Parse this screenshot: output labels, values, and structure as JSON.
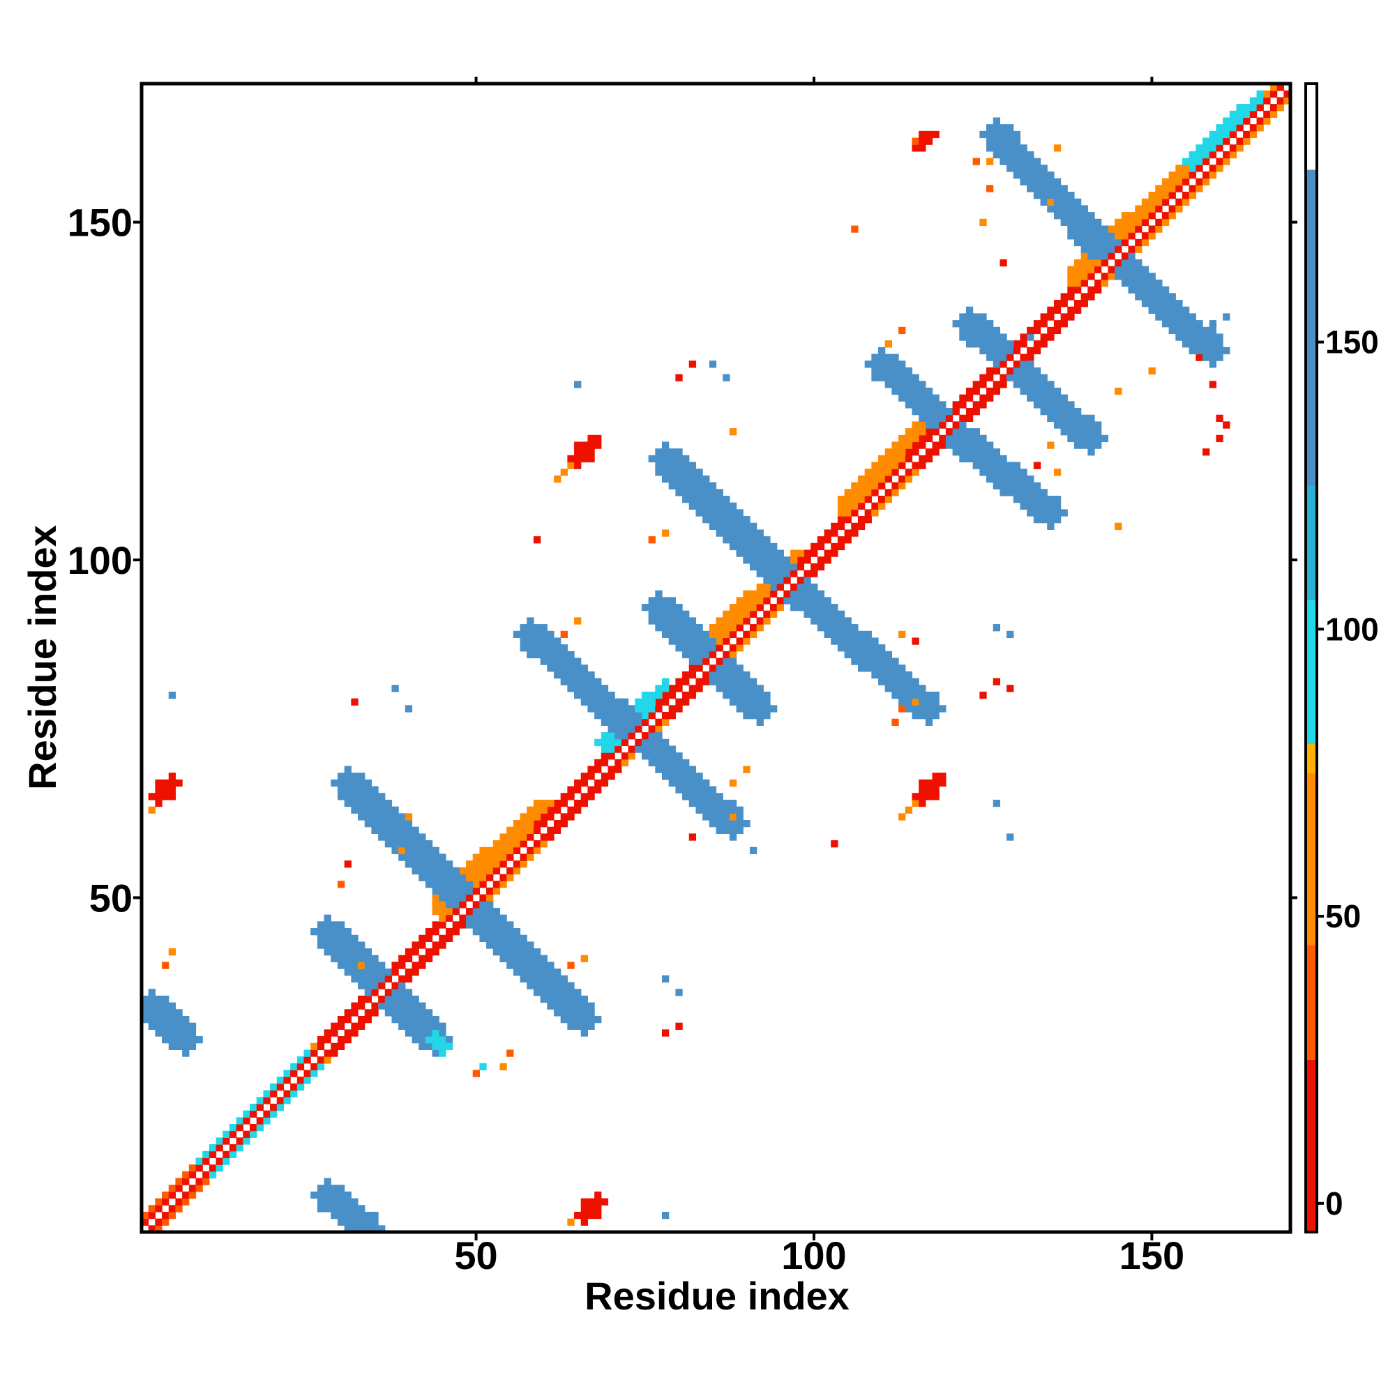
{
  "chart_data": {
    "type": "heatmap",
    "title": "",
    "xlabel": "Residue index",
    "ylabel": "Residue index",
    "xlim": [
      1,
      170
    ],
    "ylim": [
      1,
      170
    ],
    "x_ticks": [
      50,
      100,
      150
    ],
    "y_ticks": [
      50,
      100,
      150
    ],
    "colorbar": {
      "ticks": [
        0,
        50,
        100,
        150
      ],
      "range": [
        -5,
        195
      ],
      "bands": [
        {
          "from": -5,
          "to": 25,
          "color": "#ee1100"
        },
        {
          "from": 25,
          "to": 45,
          "color": "#ff5a00"
        },
        {
          "from": 45,
          "to": 75,
          "color": "#ff8c00"
        },
        {
          "from": 75,
          "to": 80,
          "color": "#ffb000"
        },
        {
          "from": 80,
          "to": 105,
          "color": "#22d8e8"
        },
        {
          "from": 105,
          "to": 125,
          "color": "#2ab0d8"
        },
        {
          "from": 125,
          "to": 180,
          "color": "#4a90c8"
        },
        {
          "from": 180,
          "to": 195,
          "color": "#ffffff"
        }
      ]
    },
    "diagonal": {
      "from": 1,
      "to": 170,
      "value": 5,
      "border_value": 60
    },
    "segments": [
      {
        "x1": 2,
        "y1": 2,
        "x2": 15,
        "y2": 15,
        "width": 1.5,
        "value": 40
      },
      {
        "x1": 11,
        "y1": 11,
        "x2": 19,
        "y2": 19,
        "width": 2,
        "value": 95
      },
      {
        "x1": 19,
        "y1": 19,
        "x2": 25,
        "y2": 25,
        "width": 2,
        "value": 95
      },
      {
        "x1": 29,
        "y1": 29,
        "x2": 37,
        "y2": 37,
        "width": 2,
        "value": 10
      },
      {
        "x1": 38,
        "y1": 38,
        "x2": 46,
        "y2": 46,
        "width": 2,
        "value": 10
      },
      {
        "x1": 46,
        "y1": 49,
        "x2": 60,
        "y2": 62,
        "width": 2.5,
        "value": 55
      },
      {
        "x1": 61,
        "y1": 61,
        "x2": 69,
        "y2": 69,
        "width": 2,
        "value": 10
      },
      {
        "x1": 70,
        "y1": 73,
        "x2": 78,
        "y2": 80,
        "width": 2,
        "value": 95
      },
      {
        "x1": 79,
        "y1": 79,
        "x2": 85,
        "y2": 85,
        "width": 2,
        "value": 10
      },
      {
        "x1": 85,
        "y1": 87,
        "x2": 98,
        "y2": 99,
        "width": 2.5,
        "value": 55
      },
      {
        "x1": 99,
        "y1": 99,
        "x2": 106,
        "y2": 106,
        "width": 2,
        "value": 10
      },
      {
        "x1": 106,
        "y1": 108,
        "x2": 116,
        "y2": 118,
        "width": 2.5,
        "value": 55
      },
      {
        "x1": 116,
        "y1": 116,
        "x2": 124,
        "y2": 124,
        "width": 2,
        "value": 10
      },
      {
        "x1": 126,
        "y1": 126,
        "x2": 140,
        "y2": 140,
        "width": 2,
        "value": 10
      },
      {
        "x1": 140,
        "y1": 142,
        "x2": 156,
        "y2": 157,
        "width": 2.5,
        "value": 55
      },
      {
        "x1": 157,
        "y1": 159,
        "x2": 166,
        "y2": 167,
        "width": 2,
        "value": 95
      },
      {
        "x1": 28,
        "y1": 45,
        "x2": 44,
        "y2": 29,
        "width": 2.2,
        "value": 150
      },
      {
        "x1": 44,
        "y1": 29,
        "x2": 45,
        "y2": 28,
        "width": 1,
        "value": 90
      },
      {
        "x1": 31,
        "y1": 67,
        "x2": 48,
        "y2": 50,
        "width": 2.2,
        "value": 150
      },
      {
        "x1": 48,
        "y1": 50,
        "x2": 66,
        "y2": 32,
        "width": 2.2,
        "value": 150
      },
      {
        "x1": 58,
        "y1": 89,
        "x2": 72,
        "y2": 76,
        "width": 2.2,
        "value": 150
      },
      {
        "x1": 72,
        "y1": 76,
        "x2": 88,
        "y2": 61,
        "width": 2.2,
        "value": 150
      },
      {
        "x1": 77,
        "y1": 93,
        "x2": 92,
        "y2": 78,
        "width": 2.2,
        "value": 150
      },
      {
        "x1": 78,
        "y1": 115,
        "x2": 98,
        "y2": 95,
        "width": 2.2,
        "value": 150
      },
      {
        "x1": 98,
        "y1": 95,
        "x2": 117,
        "y2": 78,
        "width": 2.2,
        "value": 150
      },
      {
        "x1": 110,
        "y1": 129,
        "x2": 123,
        "y2": 117,
        "width": 2.2,
        "value": 150
      },
      {
        "x1": 123,
        "y1": 117,
        "x2": 135,
        "y2": 107,
        "width": 2.2,
        "value": 150
      },
      {
        "x1": 123,
        "y1": 135,
        "x2": 141,
        "y2": 118,
        "width": 2.2,
        "value": 150
      },
      {
        "x1": 127,
        "y1": 163,
        "x2": 141,
        "y2": 148,
        "width": 2.2,
        "value": 150
      },
      {
        "x1": 141,
        "y1": 148,
        "x2": 159,
        "y2": 131,
        "width": 2.2,
        "value": 150
      },
      {
        "x1": 28,
        "y1": 6,
        "x2": 34,
        "y2": 1,
        "width": 2.2,
        "value": 150
      },
      {
        "x1": 2,
        "y1": 34,
        "x2": 7,
        "y2": 29,
        "width": 2.2,
        "value": 150
      }
    ],
    "blobs": [
      {
        "x": 4,
        "y": 66,
        "rx": 2.5,
        "ry": 1.6,
        "value": 15
      },
      {
        "x": 2,
        "y": 63,
        "rx": 1.2,
        "ry": 0.8,
        "value": 50
      },
      {
        "x": 67,
        "y": 4,
        "rx": 2.5,
        "ry": 1.6,
        "value": 15
      },
      {
        "x": 64,
        "y": 2,
        "rx": 1.2,
        "ry": 0.8,
        "value": 50
      },
      {
        "x": 66,
        "y": 116,
        "rx": 3,
        "ry": 1.6,
        "value": 15
      },
      {
        "x": 63,
        "y": 113,
        "rx": 1.5,
        "ry": 0.8,
        "value": 50
      },
      {
        "x": 117,
        "y": 66,
        "rx": 3,
        "ry": 1.6,
        "value": 15
      },
      {
        "x": 114,
        "y": 63,
        "rx": 1.5,
        "ry": 0.8,
        "value": 50
      },
      {
        "x": 116,
        "y": 162,
        "rx": 1.6,
        "ry": 1.2,
        "value": 10
      }
    ],
    "specks": [
      [
        4,
        40,
        40
      ],
      [
        5,
        42,
        50
      ],
      [
        5,
        80,
        140
      ],
      [
        30,
        52,
        40
      ],
      [
        31,
        55,
        10
      ],
      [
        33,
        40,
        60
      ],
      [
        39,
        57,
        45
      ],
      [
        40,
        62,
        55
      ],
      [
        32,
        79,
        10
      ],
      [
        38,
        81,
        150
      ],
      [
        40,
        78,
        150
      ],
      [
        50,
        24,
        40
      ],
      [
        51,
        25,
        90
      ],
      [
        54,
        25,
        45
      ],
      [
        55,
        27,
        40
      ],
      [
        59,
        103,
        10
      ],
      [
        58,
        91,
        150
      ],
      [
        59,
        88,
        150
      ],
      [
        63,
        89,
        40
      ],
      [
        65,
        91,
        45
      ],
      [
        65,
        126,
        150
      ],
      [
        64,
        40,
        40
      ],
      [
        66,
        41,
        60
      ],
      [
        78,
        3,
        150
      ],
      [
        78,
        30,
        10
      ],
      [
        80,
        31,
        10
      ],
      [
        78,
        38,
        150
      ],
      [
        80,
        36,
        150
      ],
      [
        76,
        103,
        40
      ],
      [
        78,
        104,
        55
      ],
      [
        80,
        127,
        10
      ],
      [
        82,
        129,
        10
      ],
      [
        85,
        129,
        150
      ],
      [
        87,
        127,
        150
      ],
      [
        88,
        119,
        55
      ],
      [
        88,
        67,
        55
      ],
      [
        90,
        69,
        45
      ],
      [
        88,
        62,
        60
      ],
      [
        82,
        59,
        10
      ],
      [
        91,
        57,
        150
      ],
      [
        103,
        58,
        10
      ],
      [
        106,
        149,
        40
      ],
      [
        113,
        78,
        40
      ],
      [
        115,
        79,
        55
      ],
      [
        113,
        89,
        60
      ],
      [
        115,
        88,
        10
      ],
      [
        111,
        132,
        45
      ],
      [
        113,
        134,
        40
      ],
      [
        115,
        162,
        40
      ],
      [
        118,
        163,
        10
      ],
      [
        125,
        80,
        10
      ],
      [
        127,
        82,
        10
      ],
      [
        129,
        81,
        10
      ],
      [
        127,
        90,
        150
      ],
      [
        129,
        89,
        150
      ],
      [
        127,
        64,
        150
      ],
      [
        125,
        150,
        55
      ],
      [
        126,
        155,
        40
      ],
      [
        128,
        144,
        10
      ],
      [
        133,
        114,
        10
      ],
      [
        135,
        117,
        45
      ],
      [
        136,
        113,
        45
      ],
      [
        136,
        161,
        45
      ],
      [
        145,
        105,
        50
      ],
      [
        145,
        125,
        45
      ],
      [
        150,
        128,
        60
      ],
      [
        157,
        130,
        10
      ],
      [
        158,
        116,
        10
      ],
      [
        160,
        118,
        10
      ],
      [
        159,
        135,
        150
      ],
      [
        161,
        136,
        150
      ],
      [
        159,
        126,
        10
      ],
      [
        129,
        59,
        150
      ],
      [
        132,
        133,
        150
      ],
      [
        135,
        153,
        50
      ],
      [
        160,
        121,
        10
      ],
      [
        161,
        120,
        10
      ],
      [
        112,
        76,
        40
      ],
      [
        124,
        159,
        40
      ],
      [
        126,
        159,
        55
      ]
    ]
  }
}
